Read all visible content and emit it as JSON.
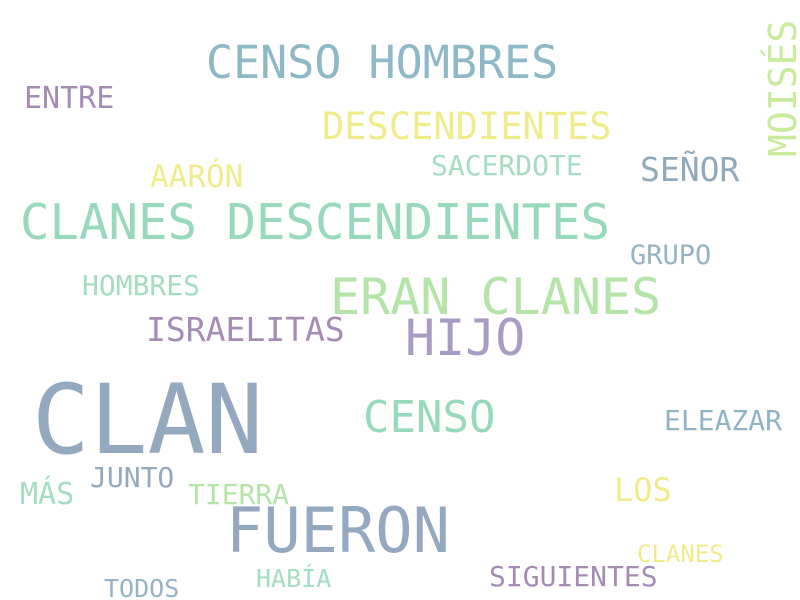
{
  "words": {
    "clan": {
      "text": "CLAN",
      "color": "#94a9c0"
    },
    "fueron": {
      "text": "FUERON",
      "color": "#94a9c0"
    },
    "clanes_descendientes": {
      "text": "CLANES DESCENDIENTES",
      "color": "#98d8bc"
    },
    "eran_clanes": {
      "text": "ERAN CLANES",
      "color": "#b4e4a8"
    },
    "censo_hombres": {
      "text": "CENSO HOMBRES",
      "color": "#8fb8c6"
    },
    "hijo": {
      "text": "HIJO",
      "color": "#a89cc4"
    },
    "censo": {
      "text": "CENSO",
      "color": "#98d8bc"
    },
    "descendientes": {
      "text": "DESCENDIENTES",
      "color": "#f0ec8c"
    },
    "moises": {
      "text": "MOISÉS",
      "color": "#c8ec9c"
    },
    "israelitas": {
      "text": "ISRAELITAS",
      "color": "#a48cb4"
    },
    "senor": {
      "text": "SEÑOR",
      "color": "#90aabc"
    },
    "aaron": {
      "text": "AARÓN",
      "color": "#f0ec8c"
    },
    "sacerdote": {
      "text": "SACERDOTE",
      "color": "#a4dcc4"
    },
    "entre": {
      "text": "ENTRE",
      "color": "#a48cb4"
    },
    "hombres": {
      "text": "HOMBRES",
      "color": "#a4dcc4"
    },
    "grupo": {
      "text": "GRUPO",
      "color": "#94b4c4"
    },
    "eleazar": {
      "text": "ELEAZAR",
      "color": "#90b4c4"
    },
    "los": {
      "text": "LOS",
      "color": "#f0ec8c"
    },
    "mas": {
      "text": "MÁS",
      "color": "#a4dcc4"
    },
    "junto": {
      "text": "JUNTO",
      "color": "#94aabc"
    },
    "tierra": {
      "text": "TIERRA",
      "color": "#b4e4a8"
    },
    "clanes": {
      "text": "CLANES",
      "color": "#f0ec8c"
    },
    "siguientes": {
      "text": "SIGUIENTES",
      "color": "#a48cb4"
    },
    "todos": {
      "text": "TODOS",
      "color": "#94b4c4"
    },
    "habia": {
      "text": "HABÍA",
      "color": "#a4dcc4"
    }
  }
}
